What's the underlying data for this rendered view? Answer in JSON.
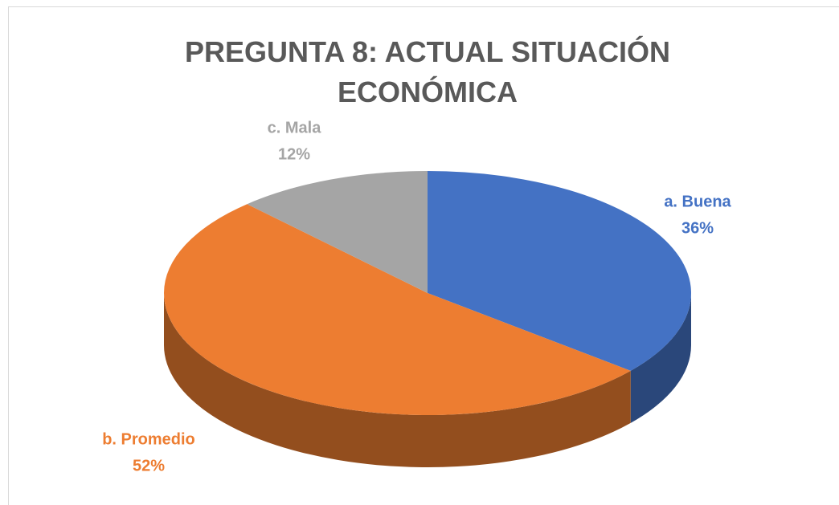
{
  "chart_data": {
    "type": "pie3d",
    "title": "PREGUNTA 8: ACTUAL SITUACIÓN ECONÓMICA",
    "categories": [
      "a. Buena",
      "b. Promedio",
      "c. Mala"
    ],
    "values": [
      36,
      52,
      12
    ],
    "value_labels": [
      "36%",
      "52%",
      "12%"
    ],
    "colors": [
      "#4472c4",
      "#ed7d31",
      "#a5a5a5"
    ]
  }
}
